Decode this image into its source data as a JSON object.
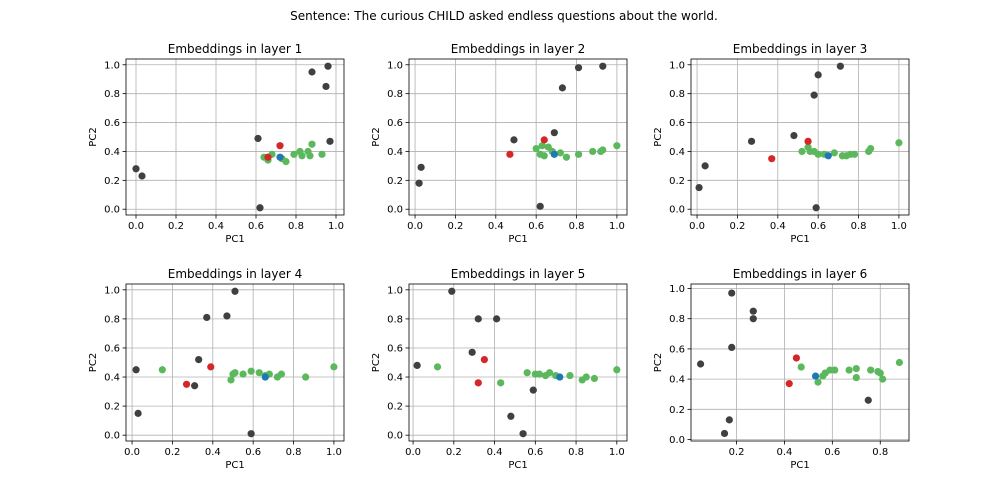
{
  "figure_title": "Sentence: The curious CHILD asked endless questions about the world.",
  "colors": {
    "context": "#404040",
    "sentence": "#5cb85c",
    "target": "#d62728",
    "highlight": "#1f77b4"
  },
  "chart_data": [
    {
      "type": "scatter",
      "title": "Embeddings in layer 1",
      "xlabel": "PC1",
      "ylabel": "PC2",
      "xlim": [
        -0.05,
        1.04
      ],
      "ylim": [
        -0.04,
        1.04
      ],
      "xticks": [
        0.0,
        0.2,
        0.4,
        0.6,
        0.8,
        1.0
      ],
      "xtick_labels": [
        "0.0",
        "0.2",
        "0.4",
        "0.6",
        "0.8",
        "1.0"
      ],
      "yticks": [
        0.0,
        0.2,
        0.4,
        0.6,
        0.8,
        1.0
      ],
      "ytick_labels": [
        "0.0",
        "0.2",
        "0.4",
        "0.6",
        "0.8",
        "1.0"
      ],
      "grid": true,
      "series": [
        {
          "color": "#404040",
          "points": [
            [
              0.0,
              0.28
            ],
            [
              0.03,
              0.23
            ],
            [
              0.62,
              0.01
            ],
            [
              0.61,
              0.49
            ],
            [
              0.88,
              0.95
            ],
            [
              0.96,
              0.99
            ],
            [
              0.95,
              0.85
            ],
            [
              0.97,
              0.47
            ]
          ]
        },
        {
          "color": "#5cb85c",
          "points": [
            [
              0.64,
              0.36
            ],
            [
              0.66,
              0.34
            ],
            [
              0.68,
              0.38
            ],
            [
              0.73,
              0.35
            ],
            [
              0.75,
              0.33
            ],
            [
              0.79,
              0.38
            ],
            [
              0.82,
              0.4
            ],
            [
              0.83,
              0.37
            ],
            [
              0.86,
              0.4
            ],
            [
              0.87,
              0.37
            ],
            [
              0.88,
              0.45
            ],
            [
              0.93,
              0.38
            ]
          ]
        },
        {
          "color": "#d62728",
          "points": [
            [
              0.66,
              0.36
            ],
            [
              0.72,
              0.44
            ]
          ]
        },
        {
          "color": "#1f77b4",
          "points": [
            [
              0.72,
              0.36
            ]
          ]
        }
      ]
    },
    {
      "type": "scatter",
      "title": "Embeddings in layer 2",
      "xlabel": "PC1",
      "ylabel": "PC2",
      "xlim": [
        -0.03,
        1.05
      ],
      "ylim": [
        -0.04,
        1.04
      ],
      "xticks": [
        0.0,
        0.2,
        0.4,
        0.6,
        0.8,
        1.0
      ],
      "xtick_labels": [
        "0.0",
        "0.2",
        "0.4",
        "0.6",
        "0.8",
        "1.0"
      ],
      "yticks": [
        0.0,
        0.2,
        0.4,
        0.6,
        0.8,
        1.0
      ],
      "ytick_labels": [
        "0.0",
        "0.2",
        "0.4",
        "0.6",
        "0.8",
        "1.0"
      ],
      "grid": true,
      "series": [
        {
          "color": "#404040",
          "points": [
            [
              0.02,
              0.18
            ],
            [
              0.03,
              0.29
            ],
            [
              0.49,
              0.48
            ],
            [
              0.62,
              0.02
            ],
            [
              0.69,
              0.53
            ],
            [
              0.73,
              0.84
            ],
            [
              0.81,
              0.98
            ],
            [
              0.93,
              0.99
            ]
          ]
        },
        {
          "color": "#5cb85c",
          "points": [
            [
              0.6,
              0.42
            ],
            [
              0.62,
              0.38
            ],
            [
              0.63,
              0.44
            ],
            [
              0.64,
              0.37
            ],
            [
              0.66,
              0.43
            ],
            [
              0.68,
              0.4
            ],
            [
              0.72,
              0.39
            ],
            [
              0.75,
              0.36
            ],
            [
              0.81,
              0.38
            ],
            [
              0.88,
              0.4
            ],
            [
              0.92,
              0.4
            ],
            [
              0.93,
              0.41
            ],
            [
              1.0,
              0.44
            ]
          ]
        },
        {
          "color": "#d62728",
          "points": [
            [
              0.47,
              0.38
            ],
            [
              0.64,
              0.48
            ]
          ]
        },
        {
          "color": "#1f77b4",
          "points": [
            [
              0.69,
              0.38
            ]
          ]
        }
      ]
    },
    {
      "type": "scatter",
      "title": "Embeddings in layer 3",
      "xlabel": "PC1",
      "ylabel": "PC2",
      "xlim": [
        -0.03,
        1.05
      ],
      "ylim": [
        -0.04,
        1.04
      ],
      "xticks": [
        0.0,
        0.2,
        0.4,
        0.6,
        0.8,
        1.0
      ],
      "xtick_labels": [
        "0.0",
        "0.2",
        "0.4",
        "0.6",
        "0.8",
        "1.0"
      ],
      "yticks": [
        0.0,
        0.2,
        0.4,
        0.6,
        0.8,
        1.0
      ],
      "ytick_labels": [
        "0.0",
        "0.2",
        "0.4",
        "0.6",
        "0.8",
        "1.0"
      ],
      "grid": true,
      "series": [
        {
          "color": "#404040",
          "points": [
            [
              0.01,
              0.15
            ],
            [
              0.04,
              0.3
            ],
            [
              0.27,
              0.47
            ],
            [
              0.48,
              0.51
            ],
            [
              0.58,
              0.79
            ],
            [
              0.6,
              0.93
            ],
            [
              0.59,
              0.01
            ],
            [
              0.71,
              0.99
            ]
          ]
        },
        {
          "color": "#5cb85c",
          "points": [
            [
              0.52,
              0.4
            ],
            [
              0.55,
              0.43
            ],
            [
              0.56,
              0.4
            ],
            [
              0.58,
              0.4
            ],
            [
              0.6,
              0.38
            ],
            [
              0.63,
              0.38
            ],
            [
              0.68,
              0.39
            ],
            [
              0.72,
              0.37
            ],
            [
              0.74,
              0.37
            ],
            [
              0.76,
              0.38
            ],
            [
              0.78,
              0.38
            ],
            [
              0.85,
              0.4
            ],
            [
              0.86,
              0.42
            ],
            [
              1.0,
              0.46
            ]
          ]
        },
        {
          "color": "#d62728",
          "points": [
            [
              0.37,
              0.35
            ],
            [
              0.55,
              0.47
            ]
          ]
        },
        {
          "color": "#1f77b4",
          "points": [
            [
              0.65,
              0.37
            ]
          ]
        }
      ]
    },
    {
      "type": "scatter",
      "title": "Embeddings in layer 4",
      "xlabel": "PC1",
      "ylabel": "PC2",
      "xlim": [
        -0.03,
        1.05
      ],
      "ylim": [
        -0.04,
        1.04
      ],
      "xticks": [
        0.0,
        0.2,
        0.4,
        0.6,
        0.8,
        1.0
      ],
      "xtick_labels": [
        "0.0",
        "0.2",
        "0.4",
        "0.6",
        "0.8",
        "1.0"
      ],
      "yticks": [
        0.0,
        0.2,
        0.4,
        0.6,
        0.8,
        1.0
      ],
      "ytick_labels": [
        "0.0",
        "0.2",
        "0.4",
        "0.6",
        "0.8",
        "1.0"
      ],
      "grid": true,
      "series": [
        {
          "color": "#404040",
          "points": [
            [
              0.02,
              0.45
            ],
            [
              0.03,
              0.15
            ],
            [
              0.31,
              0.34
            ],
            [
              0.33,
              0.52
            ],
            [
              0.37,
              0.81
            ],
            [
              0.47,
              0.82
            ],
            [
              0.51,
              0.99
            ],
            [
              0.59,
              0.01
            ]
          ]
        },
        {
          "color": "#5cb85c",
          "points": [
            [
              0.15,
              0.45
            ],
            [
              0.49,
              0.38
            ],
            [
              0.5,
              0.42
            ],
            [
              0.51,
              0.43
            ],
            [
              0.55,
              0.42
            ],
            [
              0.59,
              0.44
            ],
            [
              0.63,
              0.43
            ],
            [
              0.66,
              0.41
            ],
            [
              0.68,
              0.42
            ],
            [
              0.72,
              0.4
            ],
            [
              0.74,
              0.42
            ],
            [
              0.86,
              0.4
            ],
            [
              1.0,
              0.47
            ]
          ]
        },
        {
          "color": "#d62728",
          "points": [
            [
              0.27,
              0.35
            ],
            [
              0.39,
              0.47
            ]
          ]
        },
        {
          "color": "#1f77b4",
          "points": [
            [
              0.66,
              0.4
            ]
          ]
        }
      ]
    },
    {
      "type": "scatter",
      "title": "Embeddings in layer 5",
      "xlabel": "PC1",
      "ylabel": "PC2",
      "xlim": [
        -0.02,
        1.05
      ],
      "ylim": [
        -0.04,
        1.04
      ],
      "xticks": [
        0.0,
        0.2,
        0.4,
        0.6,
        0.8,
        1.0
      ],
      "xtick_labels": [
        "0.0",
        "0.2",
        "0.4",
        "0.6",
        "0.8",
        "1.0"
      ],
      "yticks": [
        0.0,
        0.2,
        0.4,
        0.6,
        0.8,
        1.0
      ],
      "ytick_labels": [
        "0.0",
        "0.2",
        "0.4",
        "0.6",
        "0.8",
        "1.0"
      ],
      "grid": true,
      "series": [
        {
          "color": "#404040",
          "points": [
            [
              0.02,
              0.48
            ],
            [
              0.19,
              0.99
            ],
            [
              0.29,
              0.57
            ],
            [
              0.32,
              0.8
            ],
            [
              0.41,
              0.8
            ],
            [
              0.48,
              0.13
            ],
            [
              0.54,
              0.01
            ],
            [
              0.59,
              0.31
            ]
          ]
        },
        {
          "color": "#5cb85c",
          "points": [
            [
              0.12,
              0.47
            ],
            [
              0.43,
              0.36
            ],
            [
              0.56,
              0.43
            ],
            [
              0.6,
              0.42
            ],
            [
              0.62,
              0.42
            ],
            [
              0.65,
              0.41
            ],
            [
              0.67,
              0.43
            ],
            [
              0.7,
              0.41
            ],
            [
              0.77,
              0.41
            ],
            [
              0.83,
              0.38
            ],
            [
              0.85,
              0.4
            ],
            [
              0.89,
              0.39
            ],
            [
              1.0,
              0.45
            ]
          ]
        },
        {
          "color": "#d62728",
          "points": [
            [
              0.32,
              0.36
            ],
            [
              0.35,
              0.52
            ]
          ]
        },
        {
          "color": "#1f77b4",
          "points": [
            [
              0.72,
              0.4
            ]
          ]
        }
      ]
    },
    {
      "type": "scatter",
      "title": "Embeddings in layer 6",
      "xlabel": "PC1",
      "ylabel": "PC2",
      "xlim": [
        0.01,
        0.92
      ],
      "ylim": [
        -0.01,
        1.03
      ],
      "xticks": [
        0.2,
        0.4,
        0.6,
        0.8
      ],
      "xtick_labels": [
        "0.2",
        "0.4",
        "0.6",
        "0.8"
      ],
      "yticks": [
        0.0,
        0.2,
        0.4,
        0.6,
        0.8,
        1.0
      ],
      "ytick_labels": [
        "0.0",
        "0.2",
        "0.4",
        "0.6",
        "0.8",
        "1.0"
      ],
      "grid": true,
      "series": [
        {
          "color": "#404040",
          "points": [
            [
              0.05,
              0.5
            ],
            [
              0.15,
              0.04
            ],
            [
              0.17,
              0.13
            ],
            [
              0.18,
              0.97
            ],
            [
              0.18,
              0.61
            ],
            [
              0.27,
              0.8
            ],
            [
              0.27,
              0.85
            ],
            [
              0.75,
              0.26
            ]
          ]
        },
        {
          "color": "#5cb85c",
          "points": [
            [
              0.47,
              0.48
            ],
            [
              0.54,
              0.38
            ],
            [
              0.56,
              0.42
            ],
            [
              0.57,
              0.44
            ],
            [
              0.59,
              0.46
            ],
            [
              0.61,
              0.46
            ],
            [
              0.67,
              0.46
            ],
            [
              0.7,
              0.41
            ],
            [
              0.7,
              0.47
            ],
            [
              0.76,
              0.46
            ],
            [
              0.79,
              0.45
            ],
            [
              0.8,
              0.44
            ],
            [
              0.81,
              0.4
            ],
            [
              0.88,
              0.51
            ]
          ]
        },
        {
          "color": "#d62728",
          "points": [
            [
              0.42,
              0.37
            ],
            [
              0.45,
              0.54
            ]
          ]
        },
        {
          "color": "#1f77b4",
          "points": [
            [
              0.53,
              0.42
            ]
          ]
        }
      ]
    }
  ]
}
